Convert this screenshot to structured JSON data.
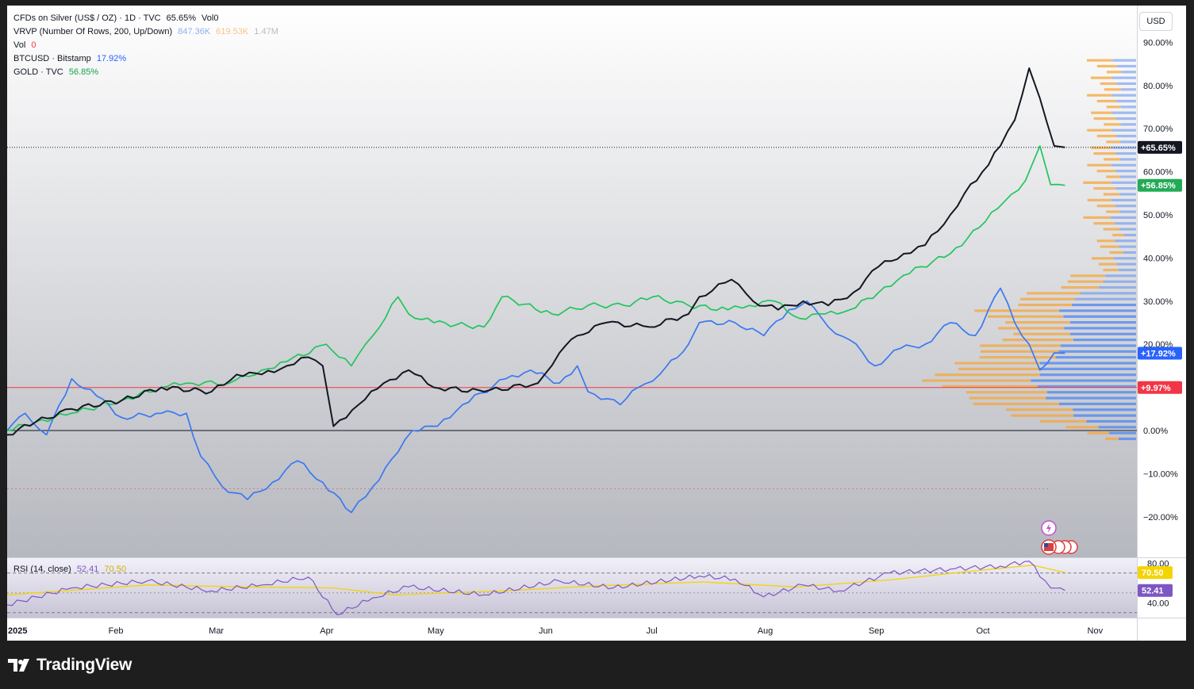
{
  "legend": {
    "main": {
      "label": "CFDs on Silver (US$ / OZ) · 1D · TVC",
      "value": "65.65%",
      "extra": "Vol0"
    },
    "vrvp": {
      "label": "VRVP (Number Of Rows, 200, Up/Down)",
      "up": "847.36K",
      "down": "619.53K",
      "total": "1.47M"
    },
    "vol": {
      "label": "Vol",
      "value": "0"
    },
    "btc": {
      "label": "BTCUSD · Bitstamp",
      "value": "17.92%"
    },
    "gold": {
      "label": "GOLD · TVC",
      "value": "56.85%"
    }
  },
  "currency_button": "USD",
  "rsi_legend": {
    "label": "RSI (14, close)",
    "rsi": "52.41",
    "ma": "70.50"
  },
  "price_axis": {
    "ticks": [
      "90.00%",
      "80.00%",
      "70.00%",
      "60.00%",
      "50.00%",
      "40.00%",
      "30.00%",
      "20.00%",
      "10.00%",
      "0.00%",
      "−10.00%",
      "−20.00%"
    ],
    "tick_values": [
      90,
      80,
      70,
      60,
      50,
      40,
      30,
      20,
      10,
      0,
      -10,
      -20
    ],
    "tags": [
      {
        "text": "+65.65%",
        "value": 65.65,
        "color": "#131722"
      },
      {
        "text": "+56.85%",
        "value": 56.85,
        "color": "#22ab55"
      },
      {
        "text": "+17.92%",
        "value": 17.92,
        "color": "#2962ff"
      },
      {
        "text": "+9.97%",
        "value": 9.97,
        "color": "#f23645"
      }
    ]
  },
  "rsi_axis": {
    "ticks": [
      "80.00",
      "40.00"
    ],
    "tick_values": [
      80,
      40
    ],
    "tags": [
      {
        "text": "70.50",
        "value": 70.5,
        "color": "#f5d400",
        "text_color": "#131722"
      },
      {
        "text": "52.41",
        "value": 52.41,
        "color": "#7e57c2",
        "text_color": "#ffffff"
      }
    ]
  },
  "time_axis": {
    "labels": [
      "2025",
      "Feb",
      "Mar",
      "Apr",
      "May",
      "Jun",
      "Jul",
      "Aug",
      "Sep",
      "Oct",
      "Nov"
    ]
  },
  "colors": {
    "silver": "#131722",
    "gold": "#22c55e",
    "btc": "#3b78f0",
    "vrvp_up": "#5b8def",
    "vrvp_down": "#f6a53a",
    "rsi": "#7e57c2",
    "rsi_ma": "#f5d400",
    "red_line": "#f23645"
  },
  "brand": {
    "name": "TradingView"
  },
  "chart_data": {
    "type": "line",
    "x_range": [
      "2025-01-02",
      "2025-10-24"
    ],
    "y_unit": "% change",
    "ylim": [
      -29,
      98
    ],
    "series": [
      {
        "name": "CFDs on Silver (US$ / OZ)",
        "color": "#131722",
        "points": [
          [
            "2025-01-02",
            -1
          ],
          [
            "2025-01-10",
            2
          ],
          [
            "2025-01-20",
            5
          ],
          [
            "2025-02-03",
            7
          ],
          [
            "2025-02-14",
            10
          ],
          [
            "2025-02-28",
            9
          ],
          [
            "2025-03-07",
            13
          ],
          [
            "2025-03-14",
            13
          ],
          [
            "2025-03-21",
            15
          ],
          [
            "2025-03-27",
            17
          ],
          [
            "2025-03-31",
            15
          ],
          [
            "2025-04-03",
            1
          ],
          [
            "2025-04-10",
            6
          ],
          [
            "2025-04-17",
            11
          ],
          [
            "2025-04-24",
            14
          ],
          [
            "2025-05-01",
            10
          ],
          [
            "2025-05-15",
            9
          ],
          [
            "2025-05-30",
            11
          ],
          [
            "2025-06-05",
            18
          ],
          [
            "2025-06-10",
            22
          ],
          [
            "2025-06-18",
            25
          ],
          [
            "2025-06-30",
            24
          ],
          [
            "2025-07-11",
            27
          ],
          [
            "2025-07-14",
            31
          ],
          [
            "2025-07-23",
            35
          ],
          [
            "2025-07-29",
            30
          ],
          [
            "2025-08-05",
            28
          ],
          [
            "2025-08-12",
            30
          ],
          [
            "2025-08-19",
            29
          ],
          [
            "2025-08-26",
            32
          ],
          [
            "2025-09-02",
            38
          ],
          [
            "2025-09-09",
            41
          ],
          [
            "2025-09-15",
            43
          ],
          [
            "2025-09-22",
            50
          ],
          [
            "2025-09-26",
            55
          ],
          [
            "2025-10-01",
            60
          ],
          [
            "2025-10-06",
            66
          ],
          [
            "2025-10-10",
            72
          ],
          [
            "2025-10-14",
            84
          ],
          [
            "2025-10-17",
            77
          ],
          [
            "2025-10-21",
            66
          ],
          [
            "2025-10-24",
            65.65
          ]
        ]
      },
      {
        "name": "GOLD · TVC",
        "color": "#22c55e",
        "points": [
          [
            "2025-01-02",
            0
          ],
          [
            "2025-01-10",
            2
          ],
          [
            "2025-01-20",
            4
          ],
          [
            "2025-02-03",
            7
          ],
          [
            "2025-02-14",
            10
          ],
          [
            "2025-02-21",
            11
          ],
          [
            "2025-03-05",
            11
          ],
          [
            "2025-03-14",
            14
          ],
          [
            "2025-03-21",
            16
          ],
          [
            "2025-04-01",
            20
          ],
          [
            "2025-04-08",
            15
          ],
          [
            "2025-04-14",
            22
          ],
          [
            "2025-04-21",
            31
          ],
          [
            "2025-04-24",
            27
          ],
          [
            "2025-05-01",
            25
          ],
          [
            "2025-05-15",
            24
          ],
          [
            "2025-05-20",
            31
          ],
          [
            "2025-06-03",
            27
          ],
          [
            "2025-06-13",
            29
          ],
          [
            "2025-06-23",
            29
          ],
          [
            "2025-07-01",
            31
          ],
          [
            "2025-07-11",
            29
          ],
          [
            "2025-07-22",
            28
          ],
          [
            "2025-07-28",
            29
          ],
          [
            "2025-08-04",
            30
          ],
          [
            "2025-08-11",
            26
          ],
          [
            "2025-08-18",
            27
          ],
          [
            "2025-08-25",
            28
          ],
          [
            "2025-09-02",
            32
          ],
          [
            "2025-09-09",
            36
          ],
          [
            "2025-09-22",
            41
          ],
          [
            "2025-09-30",
            47
          ],
          [
            "2025-10-07",
            53
          ],
          [
            "2025-10-13",
            58
          ],
          [
            "2025-10-17",
            66
          ],
          [
            "2025-10-20",
            57
          ],
          [
            "2025-10-24",
            56.85
          ]
        ]
      },
      {
        "name": "BTCUSD · Bitstamp",
        "color": "#3b78f0",
        "points": [
          [
            "2025-01-02",
            0
          ],
          [
            "2025-01-07",
            4
          ],
          [
            "2025-01-13",
            -1
          ],
          [
            "2025-01-20",
            12
          ],
          [
            "2025-01-27",
            8
          ],
          [
            "2025-02-03",
            3
          ],
          [
            "2025-02-14",
            4
          ],
          [
            "2025-02-21",
            4
          ],
          [
            "2025-02-25",
            -6
          ],
          [
            "2025-03-03",
            -13
          ],
          [
            "2025-03-10",
            -16
          ],
          [
            "2025-03-17",
            -12
          ],
          [
            "2025-03-24",
            -7
          ],
          [
            "2025-03-31",
            -12
          ],
          [
            "2025-04-08",
            -19
          ],
          [
            "2025-04-14",
            -13
          ],
          [
            "2025-04-21",
            -5
          ],
          [
            "2025-04-25",
            0
          ],
          [
            "2025-05-02",
            1
          ],
          [
            "2025-05-09",
            6
          ],
          [
            "2025-05-21",
            12
          ],
          [
            "2025-05-28",
            14
          ],
          [
            "2025-06-05",
            11
          ],
          [
            "2025-06-10",
            15
          ],
          [
            "2025-06-13",
            9
          ],
          [
            "2025-06-22",
            6
          ],
          [
            "2025-06-27",
            10
          ],
          [
            "2025-07-03",
            13
          ],
          [
            "2025-07-11",
            20
          ],
          [
            "2025-07-14",
            25
          ],
          [
            "2025-07-24",
            25
          ],
          [
            "2025-08-01",
            22
          ],
          [
            "2025-08-08",
            28
          ],
          [
            "2025-08-13",
            30
          ],
          [
            "2025-08-19",
            24
          ],
          [
            "2025-08-25",
            21
          ],
          [
            "2025-09-01",
            15
          ],
          [
            "2025-09-08",
            19
          ],
          [
            "2025-09-15",
            20
          ],
          [
            "2025-09-22",
            25
          ],
          [
            "2025-09-29",
            22
          ],
          [
            "2025-10-06",
            33
          ],
          [
            "2025-10-10",
            25
          ],
          [
            "2025-10-14",
            20
          ],
          [
            "2025-10-17",
            14
          ],
          [
            "2025-10-21",
            18
          ],
          [
            "2025-10-24",
            17.92
          ]
        ]
      }
    ],
    "rsi": {
      "name": "RSI (14, close)",
      "ylim": [
        25,
        85
      ],
      "rsi_points": [
        [
          "2025-01-02",
          38
        ],
        [
          "2025-01-20",
          55
        ],
        [
          "2025-02-10",
          62
        ],
        [
          "2025-02-28",
          52
        ],
        [
          "2025-03-14",
          58
        ],
        [
          "2025-03-27",
          66
        ],
        [
          "2025-04-04",
          28
        ],
        [
          "2025-04-14",
          45
        ],
        [
          "2025-04-24",
          56
        ],
        [
          "2025-05-15",
          48
        ],
        [
          "2025-06-05",
          62
        ],
        [
          "2025-06-20",
          55
        ],
        [
          "2025-07-14",
          67
        ],
        [
          "2025-07-24",
          64
        ],
        [
          "2025-08-01",
          46
        ],
        [
          "2025-08-12",
          58
        ],
        [
          "2025-08-22",
          52
        ],
        [
          "2025-09-05",
          70
        ],
        [
          "2025-09-22",
          74
        ],
        [
          "2025-10-06",
          77
        ],
        [
          "2025-10-14",
          82
        ],
        [
          "2025-10-20",
          55
        ],
        [
          "2025-10-24",
          52.41
        ]
      ],
      "ma_points": [
        [
          "2025-01-02",
          48
        ],
        [
          "2025-02-10",
          58
        ],
        [
          "2025-03-10",
          56
        ],
        [
          "2025-04-03",
          55
        ],
        [
          "2025-04-20",
          48
        ],
        [
          "2025-05-20",
          52
        ],
        [
          "2025-06-15",
          57
        ],
        [
          "2025-07-15",
          61
        ],
        [
          "2025-08-10",
          56
        ],
        [
          "2025-09-05",
          63
        ],
        [
          "2025-10-01",
          73
        ],
        [
          "2025-10-15",
          78
        ],
        [
          "2025-10-24",
          70.5
        ]
      ]
    }
  }
}
